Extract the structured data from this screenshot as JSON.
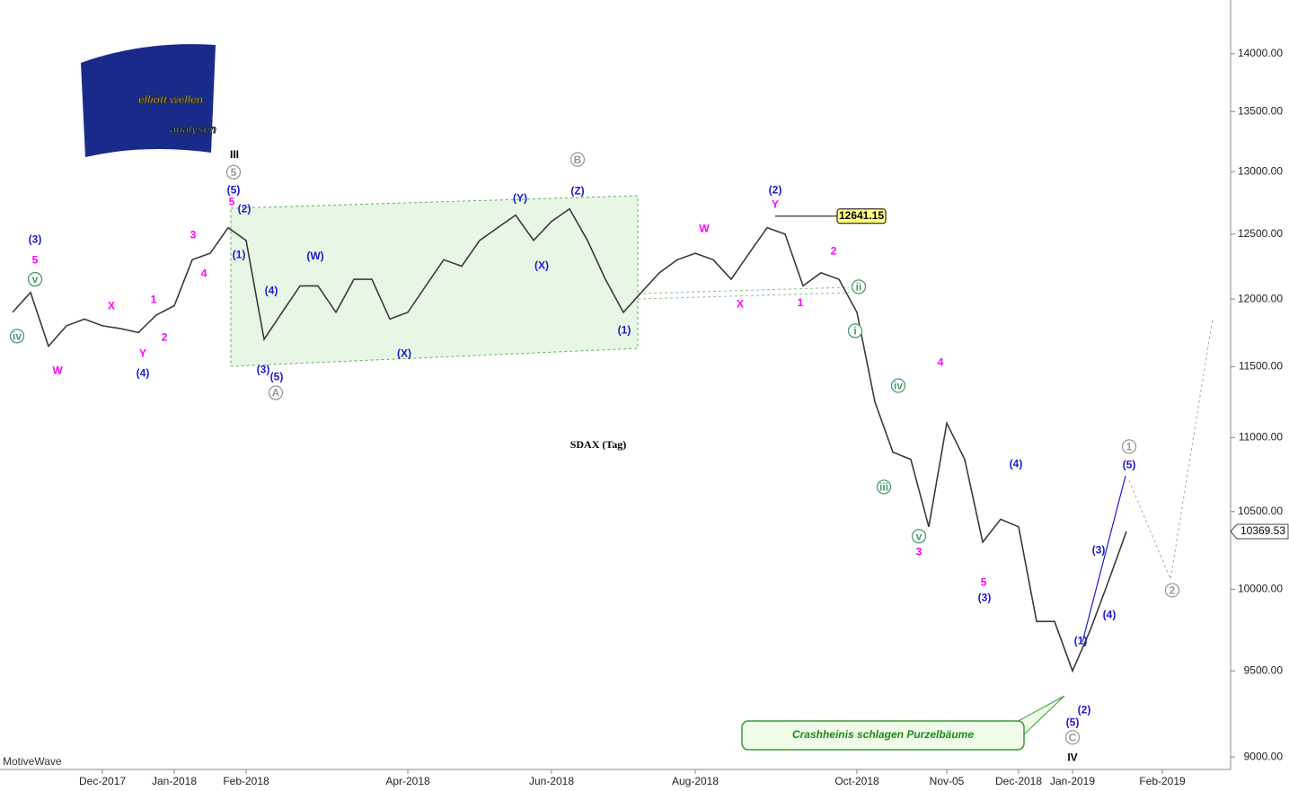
{
  "logo": {
    "line1": "elliott wellen",
    "line2": "analysen"
  },
  "watermark": "MotiveWave",
  "chart_data": {
    "type": "line",
    "title": "SDAX (Tag)",
    "color": "#3a3a3a",
    "log_scale": true,
    "categories": [
      null,
      null,
      null,
      null,
      null,
      "Dec-2017",
      null,
      null,
      null,
      "Jan-2018",
      null,
      null,
      null,
      "Feb-2018",
      null,
      null,
      null,
      null,
      null,
      null,
      null,
      null,
      "Apr-2018",
      null,
      null,
      null,
      null,
      null,
      null,
      null,
      "Jun-2018",
      null,
      null,
      null,
      null,
      null,
      null,
      null,
      "Aug-2018",
      null,
      null,
      null,
      null,
      null,
      null,
      null,
      null,
      "Oct-2018",
      null,
      null,
      null,
      null,
      "Nov-05",
      null,
      null,
      null,
      "Dec-2018",
      null,
      null,
      "Jan-2019",
      null,
      null,
      null,
      null,
      "Feb-2019"
    ],
    "values": [
      11900,
      12050,
      11650,
      11800,
      11850,
      11800,
      11780,
      11750,
      11880,
      11950,
      12300,
      12350,
      12550,
      12450,
      11700,
      11900,
      12100,
      12100,
      11900,
      12150,
      12150,
      11850,
      11900,
      12100,
      12300,
      12250,
      12450,
      12550,
      12650,
      12450,
      12600,
      12700,
      12450,
      12150,
      11900,
      12050,
      12200,
      12300,
      12350,
      12300,
      12150,
      12350,
      12550,
      12500,
      12100,
      12200,
      12150,
      11900,
      11250,
      10900,
      10850,
      10400,
      11100,
      10850,
      10300,
      10450,
      10400,
      9800,
      9800,
      9500,
      9750,
      10050,
      10370,
      null,
      null
    ],
    "ylim": [
      8930,
      14480
    ],
    "yticks": [
      {
        "value": 9000,
        "label": "9000.00"
      },
      {
        "value": 9500,
        "label": "9500.00"
      },
      {
        "value": 10000,
        "label": "10000.00"
      },
      {
        "value": 10500,
        "label": "10500.00"
      },
      {
        "value": 11000,
        "label": "11000.00"
      },
      {
        "value": 11500,
        "label": "11500.00"
      },
      {
        "value": 12000,
        "label": "12000.00"
      },
      {
        "value": 12500,
        "label": "12500.00"
      },
      {
        "value": 13000,
        "label": "13000.00"
      },
      {
        "value": 13500,
        "label": "13500.00"
      },
      {
        "value": 14000,
        "label": "14000.00"
      }
    ],
    "last_value": {
      "value": 10369.53,
      "label": "10369.53"
    },
    "high_marker": {
      "value": 12641.15,
      "label": "12641.15"
    },
    "callout": "Crashheinis schlagen Purzelbäume",
    "annotations": [
      {
        "text": "III",
        "color": "#000000",
        "x": 12.35,
        "y": 13143
      },
      {
        "text": "5",
        "color": "#999999",
        "circled": true,
        "x": 12.3,
        "y": 12996
      },
      {
        "text": "(5)",
        "color": "#1a1ad0",
        "x": 12.3,
        "y": 12853
      },
      {
        "text": "5",
        "color": "#ff00ff",
        "x": 12.2,
        "y": 12760
      },
      {
        "text": "(2)",
        "color": "#1a1ad0",
        "x": 12.9,
        "y": 12700
      },
      {
        "text": "(3)",
        "color": "#1a1ad0",
        "x": 1.25,
        "y": 12460
      },
      {
        "text": "5",
        "color": "#ff00ff",
        "x": 1.25,
        "y": 12300
      },
      {
        "text": "v",
        "color": "#4a9a6a",
        "circled": true,
        "x": 1.25,
        "y": 12150
      },
      {
        "text": "iv",
        "color": "#4a9a6a",
        "circled": true,
        "x": 0.25,
        "y": 11724
      },
      {
        "text": "W",
        "color": "#ff00ff",
        "x": 2.5,
        "y": 11476
      },
      {
        "text": "X",
        "color": "#ff00ff",
        "x": 5.5,
        "y": 11950
      },
      {
        "text": "Y",
        "color": "#ff00ff",
        "x": 7.25,
        "y": 11600
      },
      {
        "text": "(4)",
        "color": "#1a1ad0",
        "x": 7.25,
        "y": 11456
      },
      {
        "text": "1",
        "color": "#ff00ff",
        "x": 7.85,
        "y": 12000
      },
      {
        "text": "2",
        "color": "#ff00ff",
        "x": 8.45,
        "y": 11717
      },
      {
        "text": "3",
        "color": "#ff00ff",
        "x": 10.05,
        "y": 12494
      },
      {
        "text": "4",
        "color": "#ff00ff",
        "x": 10.65,
        "y": 12196
      },
      {
        "text": "(1)",
        "color": "#1a1ad0",
        "x": 12.6,
        "y": 12343
      },
      {
        "text": "(4)",
        "color": "#1a1ad0",
        "x": 14.4,
        "y": 12067
      },
      {
        "text": "(3)",
        "color": "#1a1ad0",
        "x": 13.95,
        "y": 11481
      },
      {
        "text": "(5)",
        "color": "#1a1ad0",
        "x": 14.7,
        "y": 11430
      },
      {
        "text": "A",
        "color": "#999999",
        "circled": true,
        "x": 14.65,
        "y": 11314
      },
      {
        "text": "(W)",
        "color": "#1a1ad0",
        "x": 16.85,
        "y": 12330
      },
      {
        "text": "(X)",
        "color": "#1a1ad0",
        "x": 21.8,
        "y": 11600
      },
      {
        "text": "(Y)",
        "color": "#1a1ad0",
        "x": 28.25,
        "y": 12787
      },
      {
        "text": "(X)",
        "color": "#1a1ad0",
        "x": 29.45,
        "y": 12257
      },
      {
        "text": "B",
        "color": "#999999",
        "circled": true,
        "x": 31.45,
        "y": 13100
      },
      {
        "text": "(Z)",
        "color": "#1a1ad0",
        "x": 31.45,
        "y": 12845
      },
      {
        "text": "(1)",
        "color": "#1a1ad0",
        "x": 34.05,
        "y": 11770
      },
      {
        "text": "W",
        "color": "#ff00ff",
        "x": 38.5,
        "y": 12545
      },
      {
        "text": "X",
        "color": "#ff00ff",
        "x": 40.5,
        "y": 11965
      },
      {
        "text": "(2)",
        "color": "#1a1ad0",
        "x": 42.45,
        "y": 12853
      },
      {
        "text": "Y",
        "color": "#ff00ff",
        "x": 42.45,
        "y": 12736
      },
      {
        "text": "1",
        "color": "#ff00ff",
        "x": 43.85,
        "y": 11975
      },
      {
        "text": "2",
        "color": "#ff00ff",
        "x": 45.7,
        "y": 12370
      },
      {
        "text": "ii",
        "color": "#4a9a6a",
        "circled": true,
        "x": 47.1,
        "y": 12093
      },
      {
        "text": "i",
        "color": "#4a9a6a",
        "circled": true,
        "x": 46.9,
        "y": 11763
      },
      {
        "text": "iii",
        "color": "#4a9a6a",
        "circled": true,
        "x": 48.5,
        "y": 10664
      },
      {
        "text": "iv",
        "color": "#4a9a6a",
        "circled": true,
        "x": 49.3,
        "y": 11365
      },
      {
        "text": "v",
        "color": "#4a9a6a",
        "circled": true,
        "x": 50.45,
        "y": 10339
      },
      {
        "text": "3",
        "color": "#ff00ff",
        "x": 50.45,
        "y": 10240
      },
      {
        "text": "4",
        "color": "#ff00ff",
        "x": 51.65,
        "y": 11533
      },
      {
        "text": "(4)",
        "color": "#1a1ad0",
        "x": 55.85,
        "y": 10821
      },
      {
        "text": "5",
        "color": "#ff00ff",
        "x": 54.05,
        "y": 10045
      },
      {
        "text": "(3)",
        "color": "#1a1ad0",
        "x": 54.1,
        "y": 9950
      },
      {
        "text": "(5)",
        "color": "#1a1ad0",
        "x": 59,
        "y": 9200
      },
      {
        "text": "C",
        "color": "#999999",
        "circled": true,
        "x": 59,
        "y": 9112
      },
      {
        "text": "(2)",
        "color": "#1a1ad0",
        "x": 59.65,
        "y": 9273
      },
      {
        "text": "IV",
        "color": "#000000",
        "x": 59,
        "y": 9000
      },
      {
        "text": "(1)",
        "color": "#1a1ad0",
        "x": 59.45,
        "y": 9685
      },
      {
        "text": "(3)",
        "color": "#1a1ad0",
        "x": 60.45,
        "y": 10251
      },
      {
        "text": "(4)",
        "color": "#1a1ad0",
        "x": 61.05,
        "y": 9843
      },
      {
        "text": "(5)",
        "color": "#1a1ad0",
        "x": 62.15,
        "y": 10816
      },
      {
        "text": "1",
        "color": "#999999",
        "circled": true,
        "x": 62.15,
        "y": 10938
      },
      {
        "text": "2",
        "color": "#999999",
        "circled": true,
        "x": 64.55,
        "y": 9994
      }
    ]
  }
}
